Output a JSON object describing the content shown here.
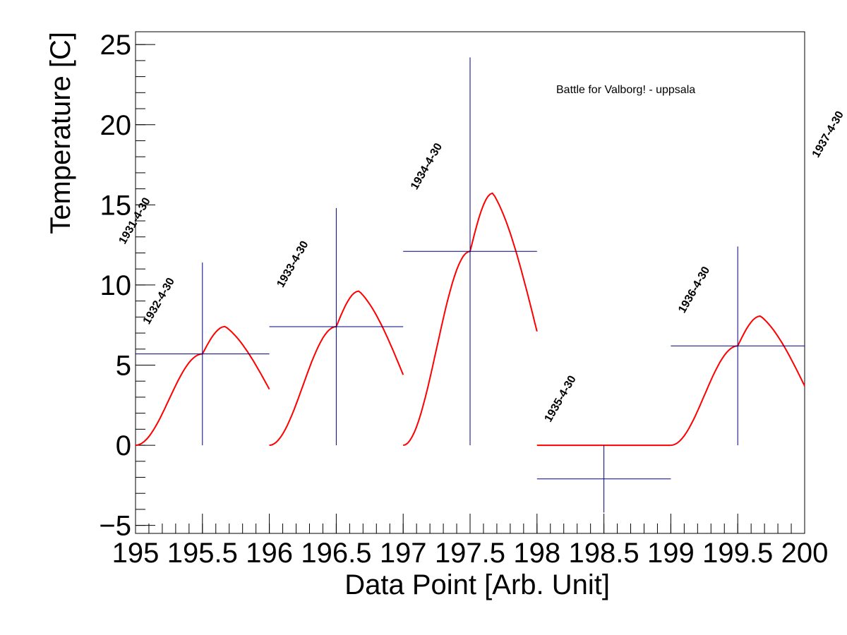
{
  "chart_data": {
    "type": "scatter",
    "title": "Battle for Valborg! - uppsala",
    "xlabel": "Data Point [Arb. Unit]",
    "ylabel": "Temperature [C]",
    "xlim": [
      195,
      200
    ],
    "ylim": [
      -5.5,
      25.8
    ],
    "x_ticks": [
      195,
      195.5,
      196,
      196.5,
      197,
      197.5,
      198,
      198.5,
      199,
      199.5,
      200
    ],
    "x_tick_labels": [
      "195",
      "195.5",
      "196",
      "196.5",
      "197",
      "197.5",
      "198",
      "198.5",
      "199",
      "199.5",
      "200"
    ],
    "y_ticks": [
      -5,
      0,
      5,
      10,
      15,
      20,
      25
    ],
    "y_tick_labels": [
      "−5",
      "0",
      "5",
      "10",
      "15",
      "20",
      "25"
    ],
    "grid": false,
    "legend": "none",
    "points": [
      {
        "x": 195.5,
        "y": 5.7,
        "x_err": 0.5,
        "y_low": 0.0,
        "y_high": 11.4,
        "curve_end": 3.5
      },
      {
        "x": 196.5,
        "y": 7.4,
        "x_err": 0.5,
        "y_low": 0.0,
        "y_high": 14.8,
        "curve_end": 4.4
      },
      {
        "x": 197.5,
        "y": 12.1,
        "x_err": 0.5,
        "y_low": 0.0,
        "y_high": 24.2,
        "curve_end": 7.1
      },
      {
        "x": 198.5,
        "y": -2.1,
        "x_err": 0.5,
        "y_low": -4.2,
        "y_high": 0.0,
        "curve_end": 0.0
      },
      {
        "x": 199.5,
        "y": 6.2,
        "x_err": 0.5,
        "y_low": 0.0,
        "y_high": 12.4,
        "curve_end": 3.7
      }
    ],
    "annotations": [
      {
        "text": "1931-4-30",
        "x": 194.92,
        "y": 12.5
      },
      {
        "text": "1932-4-30",
        "x": 195.1,
        "y": 7.5
      },
      {
        "text": "1933-4-30",
        "x": 196.1,
        "y": 9.8
      },
      {
        "text": "1934-4-30",
        "x": 197.1,
        "y": 15.9
      },
      {
        "text": "1935-4-30",
        "x": 198.1,
        "y": 1.4
      },
      {
        "text": "1936-4-30",
        "x": 199.1,
        "y": 8.2
      },
      {
        "text": "1937-4-30",
        "x": 200.1,
        "y": 17.9
      }
    ],
    "colors": {
      "marker": "#000080",
      "curve": "#ff0000",
      "axis": "#000000"
    }
  }
}
